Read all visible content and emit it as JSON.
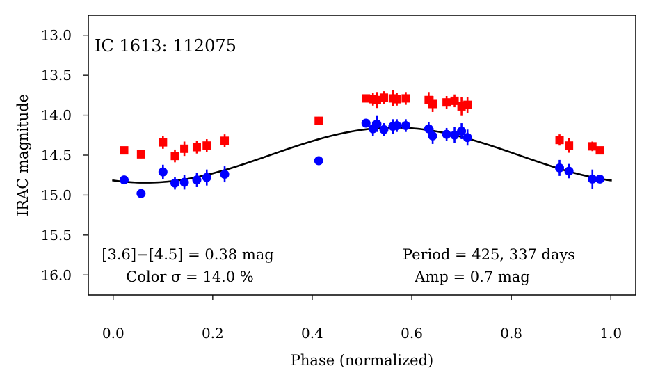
{
  "chart_data": {
    "type": "scatter",
    "title": "IC 1613: 112075",
    "xlabel": "Phase (normalized)",
    "ylabel": "IRAC magnitude",
    "xlim": [
      -0.05,
      1.05
    ],
    "ylim": [
      16.25,
      12.75
    ],
    "y_inverted": true,
    "grid": false,
    "x_ticks": [
      0.0,
      0.2,
      0.4,
      0.6,
      0.8,
      1.0
    ],
    "x_tick_labels": [
      "0.0",
      "0.2",
      "0.4",
      "0.6",
      "0.8",
      "1.0"
    ],
    "y_ticks": [
      13.0,
      13.5,
      14.0,
      14.5,
      15.0,
      15.5,
      16.0
    ],
    "y_tick_labels": [
      "13.0",
      "13.5",
      "14.0",
      "14.5",
      "15.0",
      "15.5",
      "16.0"
    ],
    "annotations": {
      "color_line1": "[3.6]−[4.5] = 0.38 mag",
      "color_line2": "Color σ = 14.0 %",
      "period_line1": "Period = 425, 337 days",
      "period_line2": "Amp = 0.7 mag"
    },
    "series": [
      {
        "color": "#ff0000",
        "marker": "square",
        "points": [
          {
            "x": 0.022,
            "y": 14.44,
            "err": 0.03
          },
          {
            "x": 0.056,
            "y": 14.49,
            "err": 0.05
          },
          {
            "x": 0.1,
            "y": 14.34,
            "err": 0.08
          },
          {
            "x": 0.124,
            "y": 14.51,
            "err": 0.08
          },
          {
            "x": 0.143,
            "y": 14.42,
            "err": 0.09
          },
          {
            "x": 0.168,
            "y": 14.4,
            "err": 0.08
          },
          {
            "x": 0.188,
            "y": 14.38,
            "err": 0.08
          },
          {
            "x": 0.224,
            "y": 14.32,
            "err": 0.08
          },
          {
            "x": 0.413,
            "y": 14.07,
            "err": 0.05
          },
          {
            "x": 0.508,
            "y": 13.79,
            "err": 0.04
          },
          {
            "x": 0.522,
            "y": 13.8,
            "err": 0.08
          },
          {
            "x": 0.53,
            "y": 13.81,
            "err": 0.1
          },
          {
            "x": 0.544,
            "y": 13.78,
            "err": 0.08
          },
          {
            "x": 0.562,
            "y": 13.79,
            "err": 0.1
          },
          {
            "x": 0.57,
            "y": 13.8,
            "err": 0.08
          },
          {
            "x": 0.588,
            "y": 13.79,
            "err": 0.08
          },
          {
            "x": 0.634,
            "y": 13.81,
            "err": 0.1
          },
          {
            "x": 0.642,
            "y": 13.86,
            "err": 0.1
          },
          {
            "x": 0.67,
            "y": 13.84,
            "err": 0.08
          },
          {
            "x": 0.686,
            "y": 13.82,
            "err": 0.08
          },
          {
            "x": 0.7,
            "y": 13.89,
            "err": 0.12
          },
          {
            "x": 0.712,
            "y": 13.87,
            "err": 0.1
          },
          {
            "x": 0.897,
            "y": 14.31,
            "err": 0.07
          },
          {
            "x": 0.916,
            "y": 14.38,
            "err": 0.09
          },
          {
            "x": 0.963,
            "y": 14.39,
            "err": 0.06
          },
          {
            "x": 0.978,
            "y": 14.44,
            "err": 0.04
          }
        ]
      },
      {
        "color": "#0000ff",
        "marker": "circle",
        "points": [
          {
            "x": 0.022,
            "y": 14.81,
            "err": 0.03
          },
          {
            "x": 0.056,
            "y": 14.98,
            "err": 0.05
          },
          {
            "x": 0.1,
            "y": 14.71,
            "err": 0.09
          },
          {
            "x": 0.124,
            "y": 14.85,
            "err": 0.08
          },
          {
            "x": 0.143,
            "y": 14.84,
            "err": 0.09
          },
          {
            "x": 0.168,
            "y": 14.81,
            "err": 0.09
          },
          {
            "x": 0.188,
            "y": 14.78,
            "err": 0.1
          },
          {
            "x": 0.224,
            "y": 14.74,
            "err": 0.1
          },
          {
            "x": 0.413,
            "y": 14.57,
            "err": 0.05
          },
          {
            "x": 0.508,
            "y": 14.1,
            "err": 0.04
          },
          {
            "x": 0.522,
            "y": 14.17,
            "err": 0.09
          },
          {
            "x": 0.53,
            "y": 14.11,
            "err": 0.1
          },
          {
            "x": 0.544,
            "y": 14.18,
            "err": 0.08
          },
          {
            "x": 0.562,
            "y": 14.14,
            "err": 0.09
          },
          {
            "x": 0.57,
            "y": 14.13,
            "err": 0.08
          },
          {
            "x": 0.588,
            "y": 14.13,
            "err": 0.08
          },
          {
            "x": 0.634,
            "y": 14.17,
            "err": 0.08
          },
          {
            "x": 0.642,
            "y": 14.26,
            "err": 0.1
          },
          {
            "x": 0.67,
            "y": 14.24,
            "err": 0.08
          },
          {
            "x": 0.686,
            "y": 14.25,
            "err": 0.1
          },
          {
            "x": 0.7,
            "y": 14.2,
            "err": 0.1
          },
          {
            "x": 0.712,
            "y": 14.28,
            "err": 0.1
          },
          {
            "x": 0.897,
            "y": 14.66,
            "err": 0.1
          },
          {
            "x": 0.916,
            "y": 14.7,
            "err": 0.09
          },
          {
            "x": 0.963,
            "y": 14.8,
            "err": 0.12
          },
          {
            "x": 0.978,
            "y": 14.8,
            "err": 0.05
          }
        ]
      }
    ],
    "model_curve": {
      "color": "#000000",
      "description_type": "sinusoid",
      "mean": 14.5,
      "amplitude_half": 0.345,
      "phase_of_max_brightness": 0.565,
      "x_range": [
        -0.002,
        1.002
      ]
    }
  }
}
